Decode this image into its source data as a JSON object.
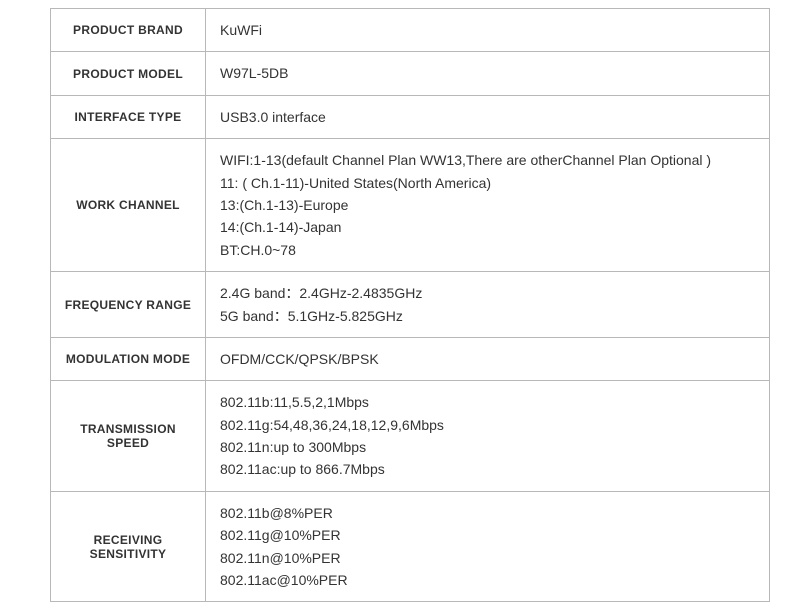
{
  "table": {
    "border_color": "#b8b8b8",
    "background_color": "#ffffff",
    "label_fontsize": 12,
    "value_fontsize": 14,
    "brand_fontsize": 20,
    "brand_color": "#888888",
    "text_color": "#333333",
    "label_column_width": 155,
    "rows": [
      {
        "label": "PRODUCT BRAND",
        "value": "KuWFi",
        "is_brand": true
      },
      {
        "label": "PRODUCT MODEL",
        "value": "W97L-5DB"
      },
      {
        "label": "INTERFACE TYPE",
        "value": "USB3.0 interface"
      },
      {
        "label": "WORK CHANNEL",
        "value": "WIFI:1-13(default Channel Plan WW13,There are otherChannel Plan Optional )\n11: ( Ch.1-11)-United States(North America)\n13:(Ch.1-13)-Europe\n14:(Ch.1-14)-Japan\nBT:CH.0~78",
        "multiline": true
      },
      {
        "label": "FREQUENCY RANGE",
        "value": "2.4G band：2.4GHz-2.4835GHz\n5G band：5.1GHz-5.825GHz",
        "multiline": true
      },
      {
        "label": "MODULATION MODE",
        "value": "OFDM/CCK/QPSK/BPSK"
      },
      {
        "label": "TRANSMISSION SPEED",
        "value": "802.11b:11,5.5,2,1Mbps\n802.11g:54,48,36,24,18,12,9,6Mbps\n802.11n:up to 300Mbps\n802.11ac:up to 866.7Mbps",
        "multiline": true,
        "label_multiline": true
      },
      {
        "label": "RECEIVING SENSITIVITY",
        "value": "802.11b@8%PER\n802.11g@10%PER\n802.11n@10%PER\n802.11ac@10%PER",
        "multiline": true,
        "label_multiline": true
      }
    ]
  }
}
